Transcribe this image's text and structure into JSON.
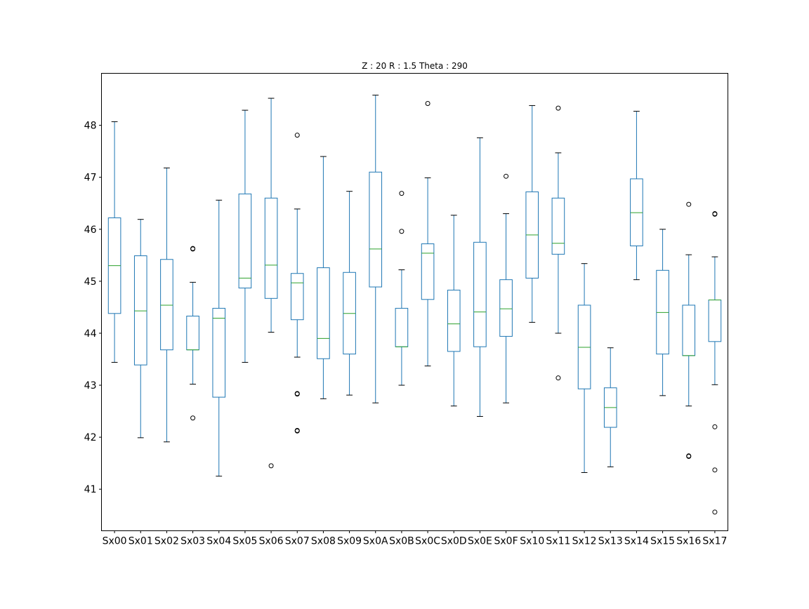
{
  "chart_data": {
    "type": "box",
    "title": "Z : 20 R : 1.5  Theta : 290",
    "xlabel": "",
    "ylabel": "",
    "ylim": [
      40.2,
      49.0
    ],
    "yticks": [
      41,
      42,
      43,
      44,
      45,
      46,
      47,
      48
    ],
    "grid": false,
    "colors": {
      "box": "#1f77b4",
      "median": "#2ca02c",
      "whisker": "#1f77b4",
      "cap": "#000000",
      "flier": "#000000"
    },
    "categories": [
      "Sx00",
      "Sx01",
      "Sx02",
      "Sx03",
      "Sx04",
      "Sx05",
      "Sx06",
      "Sx07",
      "Sx08",
      "Sx09",
      "Sx0A",
      "Sx0B",
      "Sx0C",
      "Sx0D",
      "Sx0E",
      "Sx0F",
      "Sx10",
      "Sx11",
      "Sx12",
      "Sx13",
      "Sx14",
      "Sx15",
      "Sx16",
      "Sx17"
    ],
    "boxes": [
      {
        "whislo": 43.44,
        "q1": 44.38,
        "med": 45.3,
        "q3": 46.22,
        "whishi": 48.07,
        "fliers": []
      },
      {
        "whislo": 41.99,
        "q1": 43.39,
        "med": 44.43,
        "q3": 45.49,
        "whishi": 46.19,
        "fliers": []
      },
      {
        "whislo": 41.91,
        "q1": 43.68,
        "med": 44.54,
        "q3": 45.42,
        "whishi": 47.18,
        "fliers": []
      },
      {
        "whislo": 43.02,
        "q1": 43.68,
        "med": 43.68,
        "q3": 44.33,
        "whishi": 44.98,
        "fliers": [
          45.62,
          45.63,
          42.37
        ]
      },
      {
        "whislo": 41.25,
        "q1": 42.77,
        "med": 44.29,
        "q3": 44.48,
        "whishi": 46.56,
        "fliers": []
      },
      {
        "whislo": 43.44,
        "q1": 44.87,
        "med": 45.06,
        "q3": 46.68,
        "whishi": 48.29,
        "fliers": []
      },
      {
        "whislo": 44.02,
        "q1": 44.67,
        "med": 45.31,
        "q3": 46.6,
        "whishi": 48.52,
        "fliers": [
          41.45
        ]
      },
      {
        "whislo": 43.54,
        "q1": 44.26,
        "med": 44.97,
        "q3": 45.15,
        "whishi": 46.39,
        "fliers": [
          47.81,
          42.83,
          42.84,
          42.12,
          42.13
        ]
      },
      {
        "whislo": 42.74,
        "q1": 43.51,
        "med": 43.9,
        "q3": 45.26,
        "whishi": 47.4,
        "fliers": []
      },
      {
        "whislo": 42.81,
        "q1": 43.6,
        "med": 44.38,
        "q3": 45.17,
        "whishi": 46.73,
        "fliers": []
      },
      {
        "whislo": 42.66,
        "q1": 44.89,
        "med": 45.62,
        "q3": 47.1,
        "whishi": 48.58,
        "fliers": []
      },
      {
        "whislo": 43.0,
        "q1": 43.74,
        "med": 43.74,
        "q3": 44.48,
        "whishi": 45.22,
        "fliers": [
          46.69,
          45.96
        ]
      },
      {
        "whislo": 43.37,
        "q1": 44.65,
        "med": 45.54,
        "q3": 45.72,
        "whishi": 46.99,
        "fliers": [
          48.42
        ]
      },
      {
        "whislo": 42.6,
        "q1": 43.65,
        "med": 44.18,
        "q3": 44.83,
        "whishi": 46.27,
        "fliers": []
      },
      {
        "whislo": 42.4,
        "q1": 43.74,
        "med": 44.41,
        "q3": 45.75,
        "whishi": 47.76,
        "fliers": []
      },
      {
        "whislo": 42.66,
        "q1": 43.94,
        "med": 44.47,
        "q3": 45.03,
        "whishi": 46.3,
        "fliers": [
          47.02
        ]
      },
      {
        "whislo": 44.21,
        "q1": 45.06,
        "med": 45.89,
        "q3": 46.72,
        "whishi": 48.38,
        "fliers": []
      },
      {
        "whislo": 44.0,
        "q1": 45.52,
        "med": 45.73,
        "q3": 46.6,
        "whishi": 47.47,
        "fliers": [
          48.33,
          43.14
        ]
      },
      {
        "whislo": 41.32,
        "q1": 42.93,
        "med": 43.73,
        "q3": 44.54,
        "whishi": 45.34,
        "fliers": []
      },
      {
        "whislo": 41.43,
        "q1": 42.19,
        "med": 42.57,
        "q3": 42.95,
        "whishi": 43.72,
        "fliers": []
      },
      {
        "whislo": 45.03,
        "q1": 45.68,
        "med": 46.32,
        "q3": 46.97,
        "whishi": 48.27,
        "fliers": []
      },
      {
        "whislo": 42.8,
        "q1": 43.6,
        "med": 44.4,
        "q3": 45.21,
        "whishi": 46.0,
        "fliers": []
      },
      {
        "whislo": 42.6,
        "q1": 43.57,
        "med": 43.57,
        "q3": 44.54,
        "whishi": 45.51,
        "fliers": [
          46.48,
          41.63,
          41.64
        ]
      },
      {
        "whislo": 43.01,
        "q1": 43.84,
        "med": 44.64,
        "q3": 44.64,
        "whishi": 45.47,
        "fliers": [
          46.29,
          46.3,
          42.2,
          41.37,
          40.56
        ]
      }
    ]
  }
}
